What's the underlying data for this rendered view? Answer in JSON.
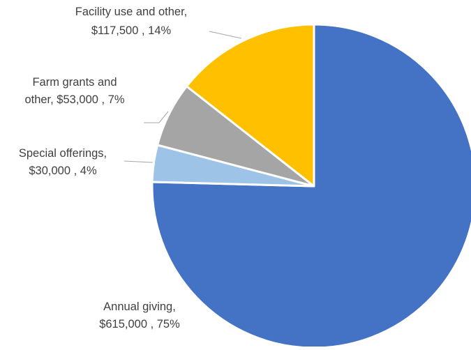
{
  "chart_data": {
    "type": "pie",
    "title": "",
    "slices": [
      {
        "label_lines": [
          "Annual giving,",
          "$615,000 , 75%"
        ],
        "name": "Annual giving",
        "value": 615000,
        "percent": 75,
        "color": "#4472C4"
      },
      {
        "label_lines": [
          "Special offerings,",
          "$30,000 , 4%"
        ],
        "name": "Special offerings",
        "value": 30000,
        "percent": 4,
        "color": "#9DC3E6"
      },
      {
        "label_lines": [
          "Farm grants and",
          "other,  $53,000 , 7%"
        ],
        "name": "Farm grants and other",
        "value": 53000,
        "percent": 7,
        "color": "#A5A5A5"
      },
      {
        "label_lines": [
          "Facility use and other,",
          "$117,500 , 14%"
        ],
        "name": "Facility use and other",
        "value": 117500,
        "percent": 14,
        "color": "#FFC000"
      }
    ],
    "start_angle_deg": 0,
    "direction": "clockwise",
    "legend": "none",
    "data_labels": "outside with leader lines"
  }
}
